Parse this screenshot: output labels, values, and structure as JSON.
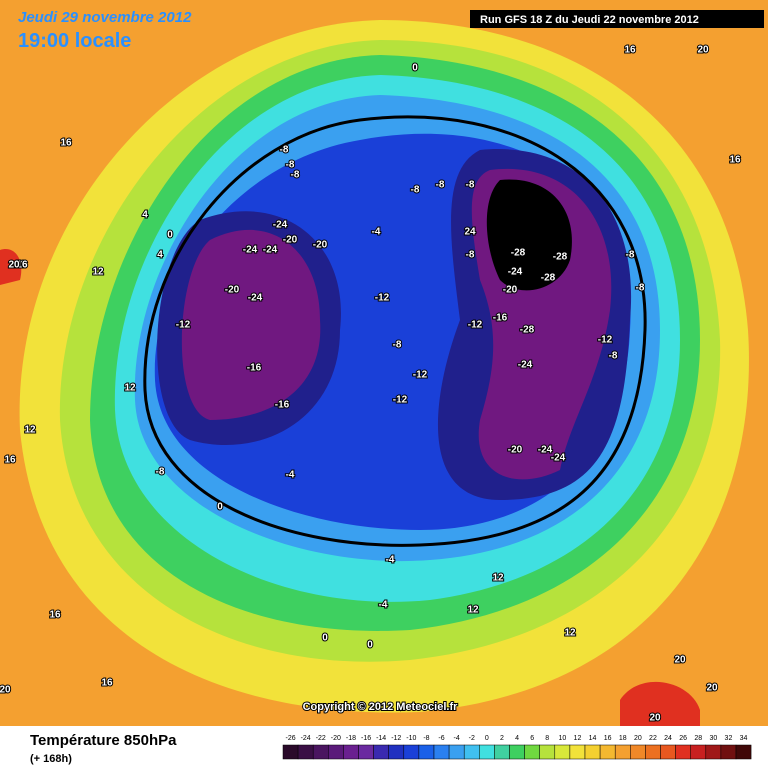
{
  "header": {
    "date": "Jeudi 29 novembre 2012",
    "time": "19:00 locale",
    "run": "Run GFS 18 Z du Jeudi 22 novembre 2012"
  },
  "copyright": "Copyright © 2012 Meteociel.fr",
  "footer": {
    "title": "Température 850hPa",
    "subtitle": "(+ 168h)"
  },
  "colorbar": {
    "labels": [
      -26,
      -24,
      -22,
      -20,
      -18,
      -16,
      -14,
      -12,
      -10,
      -8,
      -6,
      -4,
      -2,
      0,
      2,
      4,
      6,
      8,
      10,
      12,
      14,
      16,
      18,
      20,
      22,
      24,
      26,
      28,
      30,
      32,
      34
    ]
  },
  "contour_labels": [
    12,
    16,
    20,
    16,
    4,
    0,
    4,
    -8,
    -8,
    -8,
    -24,
    -20,
    -20,
    -24,
    -24,
    -20,
    -24,
    -12,
    -16,
    -16,
    -12,
    -8,
    -12,
    -12,
    -8,
    -8,
    -8,
    -8,
    24,
    -28,
    -28,
    -24,
    -28,
    -20,
    -16,
    -28,
    -24,
    -20,
    -24,
    -24,
    -12,
    -8,
    -8,
    -12,
    -8,
    -4,
    -8,
    -4,
    0,
    -4,
    -4,
    0,
    12,
    12,
    16,
    12,
    16,
    20,
    20,
    20,
    20,
    16,
    12,
    16,
    0,
    0,
    16,
    12,
    20,
    12
  ]
}
